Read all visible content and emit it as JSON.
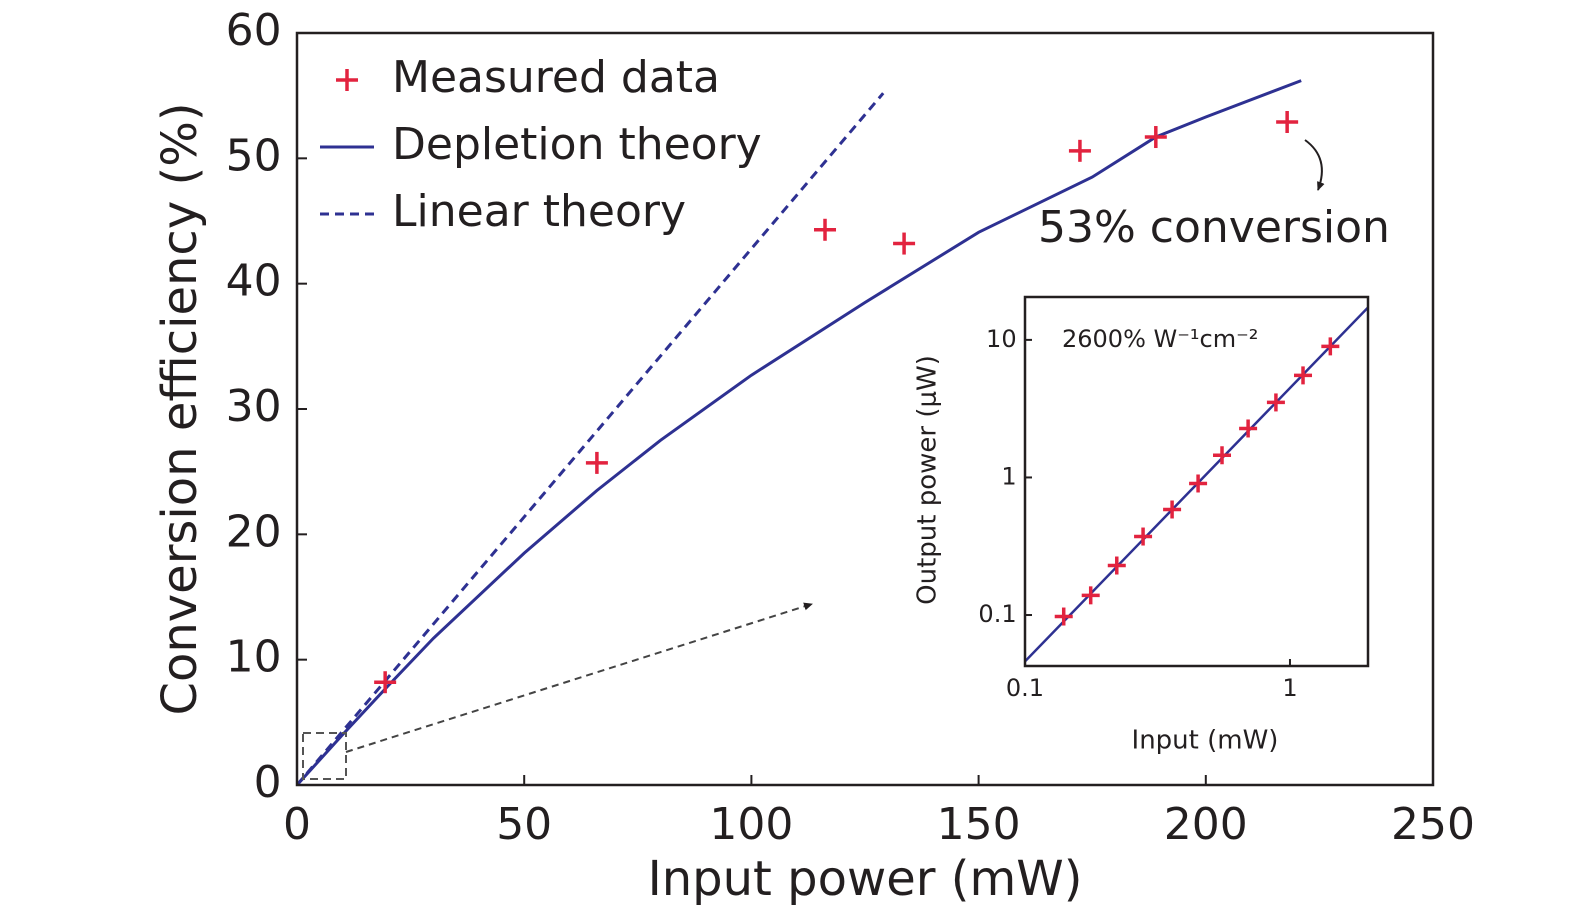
{
  "chart_data": [
    {
      "type": "scatter",
      "x_label": "Input power (mW)",
      "y_label": "Conversion efficiency (%)",
      "xlim": [
        0,
        250
      ],
      "ylim": [
        0,
        60
      ],
      "xticks": [
        0,
        50,
        100,
        150,
        200,
        250
      ],
      "yticks": [
        0,
        10,
        20,
        30,
        40,
        50,
        60
      ],
      "legend": "upper left",
      "annotation": "53% conversion",
      "series": [
        {
          "name": "Measured data",
          "type": "scatter",
          "color": "#e2233f",
          "x": [
            19.4,
            66,
            116.2,
            133.6,
            172.3,
            189,
            217.9
          ],
          "values": [
            8.2,
            25.7,
            44.3,
            43.2,
            50.6,
            51.7,
            52.9
          ]
        },
        {
          "name": "Depletion theory",
          "type": "line",
          "dash": false,
          "color": "#2e3192",
          "x": [
            0,
            10,
            20,
            30,
            50,
            66,
            80,
            100,
            125,
            150,
            175,
            189,
            200,
            221
          ],
          "values": [
            0,
            4,
            7.9,
            11.7,
            18.5,
            23.5,
            27.5,
            32.7,
            38.5,
            44.1,
            48.5,
            51.7,
            53.3,
            56.2
          ]
        },
        {
          "name": "Linear theory",
          "type": "line",
          "dash": true,
          "color": "#2e3192",
          "x": [
            0,
            129
          ],
          "values": [
            0,
            55.2
          ]
        }
      ]
    },
    {
      "type": "scatter",
      "x_label": "Input (mW)",
      "y_label": "Output power (μW)",
      "xlog": true,
      "ylog": true,
      "xlim": [
        0.1,
        1.97
      ],
      "ylim": [
        0.0426,
        20.5
      ],
      "xticks": [
        0.1,
        1
      ],
      "yticks": [
        0.1,
        1,
        10
      ],
      "annotation": "2600% W⁻¹cm⁻²",
      "series": [
        {
          "type": "scatter",
          "color": "#e2233f",
          "x": [
            0.14,
            0.177,
            0.222,
            0.279,
            0.359,
            0.45,
            0.554,
            0.695,
            0.885,
            1.12,
            1.42
          ],
          "values": [
            0.0975,
            0.139,
            0.229,
            0.372,
            0.585,
            0.904,
            1.45,
            2.27,
            3.51,
            5.52,
            8.97
          ]
        },
        {
          "type": "line",
          "dash": false,
          "color": "#2e3192",
          "x": [
            0.1,
            1.97
          ],
          "values": [
            0.046,
            17.2
          ]
        }
      ]
    }
  ]
}
